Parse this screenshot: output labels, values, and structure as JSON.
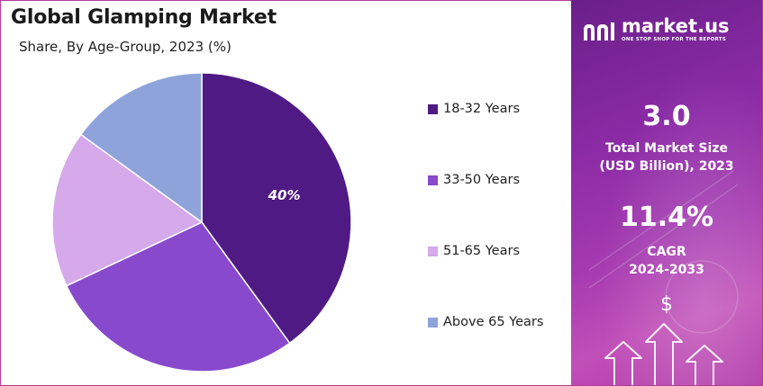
{
  "chart_data": {
    "type": "pie",
    "title": "Global Glamping Market",
    "subtitle": "Share, By Age-Group, 2023 (%)",
    "legend_position": "right",
    "categories": [
      "18-32 Years",
      "33-50 Years",
      "51-65 Years",
      "Above 65 Years"
    ],
    "values": [
      40,
      28,
      17,
      15
    ],
    "colors": [
      "#4f1a84",
      "#8849cd",
      "#d5a9ea",
      "#8fa3db"
    ],
    "data_labels": [
      "40%",
      "",
      "",
      ""
    ]
  },
  "panel": {
    "brand": "market.us",
    "tagline": "ONE STOP SHOP FOR THE REPORTS",
    "market_size_value": "3.0",
    "market_size_label_line1": "Total Market Size",
    "market_size_label_line2": "(USD Billion), 2023",
    "cagr_value": "11.4%",
    "cagr_label_line1": "CAGR",
    "cagr_label_line2": "2024-2033",
    "currency_symbol": "$",
    "icons": [
      "market-us-logo-icon",
      "arrow-up-icon",
      "dollar-icon"
    ]
  }
}
